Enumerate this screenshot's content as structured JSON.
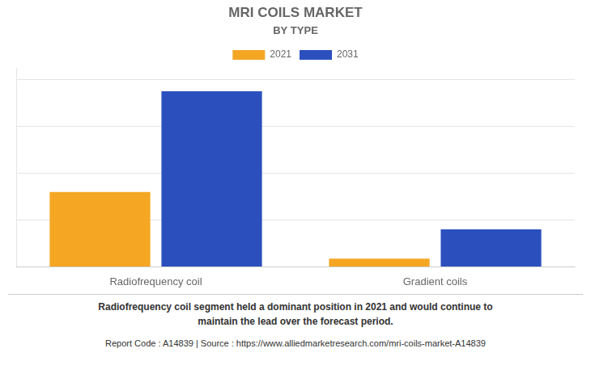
{
  "chart_data": {
    "type": "bar",
    "title": "MRI COILS MARKET",
    "subtitle": "BY TYPE",
    "categories": [
      "Radiofrequency coil",
      "Gradient coils"
    ],
    "series": [
      {
        "name": "2021",
        "color": "#F5A623",
        "values": [
          3.2,
          0.35
        ]
      },
      {
        "name": "2031",
        "color": "#2B50BE",
        "values": [
          7.5,
          1.6
        ]
      }
    ],
    "ylim": [
      0,
      8.5
    ],
    "yticks": [
      0,
      2,
      4,
      6,
      8
    ],
    "grid": true,
    "legend": "top",
    "tick_labels": "x",
    "annotations": [
      "Radiofrequency coil segment held a dominant position in 2021 and would continue to\nmaintain the lead over the forecast period.",
      "Report Code : A14839  |  Source : https://www.alliedmarketresearch.com/mri-coils-market-A14839"
    ]
  }
}
